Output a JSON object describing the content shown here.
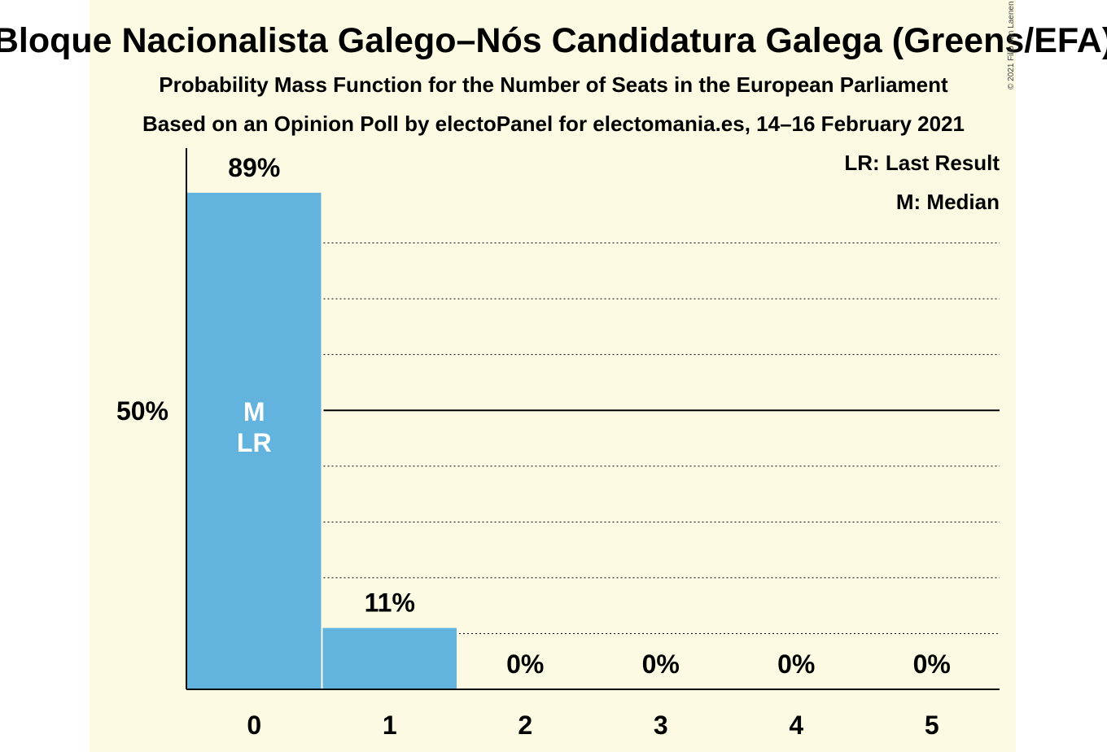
{
  "colors": {
    "bar": "#62b4de",
    "background": "#fdfae3",
    "axis": "#000000",
    "grid": "#000000",
    "bar_text": "#ffffff"
  },
  "copyright": "© 2021 Filip van Laenen",
  "chart_data": {
    "type": "bar",
    "title": "Bloque Nacionalista Galego–Nós Candidatura Galega (Greens/EFA)",
    "subtitle": "Probability Mass Function for the Number of Seats in the European Parliament",
    "subtitle2": "Based on an Opinion Poll by electoPanel for electomania.es, 14–16 February 2021",
    "xlabel": "",
    "ylabel": "",
    "categories": [
      "0",
      "1",
      "2",
      "3",
      "4",
      "5"
    ],
    "values": [
      89,
      11,
      0,
      0,
      0,
      0
    ],
    "value_labels": [
      "89%",
      "11%",
      "0%",
      "0%",
      "0%",
      "0%"
    ],
    "ylim": [
      0,
      97
    ],
    "gridlines": [
      10,
      20,
      30,
      40,
      50,
      60,
      70,
      80
    ],
    "major_gridline": 50,
    "y_tick_label": "50%",
    "median_index": 0,
    "last_result_index": 0,
    "bar_annotations": [
      "M",
      "LR"
    ],
    "legend": [
      "LR: Last Result",
      "M: Median"
    ],
    "legend_position": "top-right"
  }
}
